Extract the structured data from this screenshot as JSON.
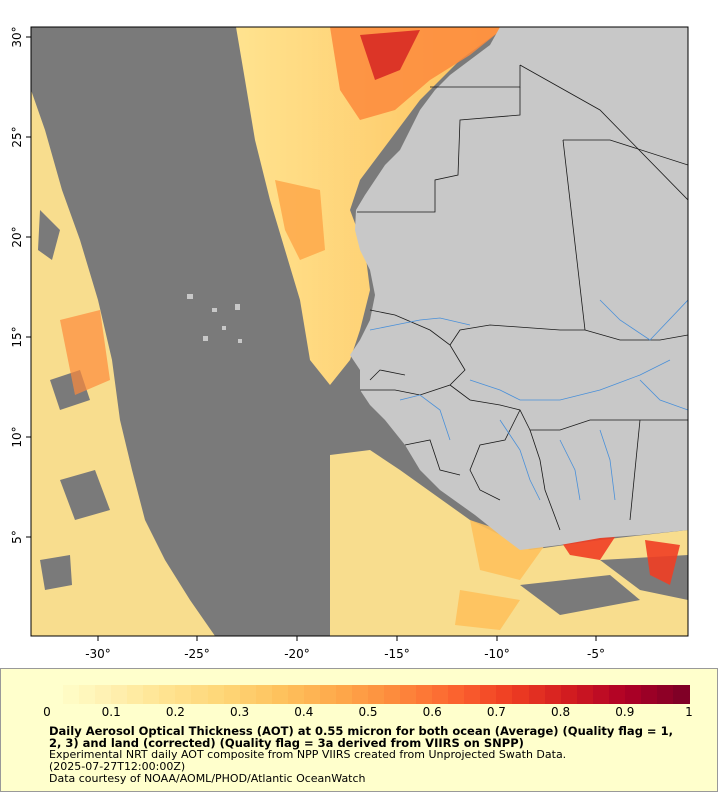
{
  "map": {
    "lon_range": [
      -33.5,
      -0.5
    ],
    "lat_range": [
      0.5,
      30.5
    ],
    "x_tick_labels": [
      "-30°",
      "-25°",
      "-20°",
      "-15°",
      "-10°",
      "-5°"
    ],
    "y_tick_labels": [
      "30°",
      "25°",
      "20°",
      "15°",
      "10°",
      "5°"
    ],
    "colors": {
      "no_data": "#7a7a7a",
      "land": "#c8c8c8",
      "border": "#1a1a1a",
      "river": "#4a90d9"
    }
  },
  "legend": {
    "scale_labels": [
      "0",
      "0.1",
      "0.2",
      "0.3",
      "0.4",
      "0.5",
      "0.6",
      "0.7",
      "0.8",
      "0.9",
      "1"
    ],
    "colors": [
      "#ffffcc",
      "#fff0b0",
      "#ffe38f",
      "#fed576",
      "#fec15c",
      "#fea84a",
      "#fd8a3c",
      "#fc6530",
      "#ef3e23",
      "#d31d20",
      "#b00026",
      "#800026"
    ],
    "title": "Daily Aerosol Optical Thickness (AOT) at 0.55 micron for both ocean (Average) (Quality flag = 1, 2, 3) and land (corrected) (Quality flag = 3a derived from VIIRS on SNPP)",
    "subtitle": "Experimental NRT daily AOT composite from NPP VIIRS created from Unprojected Swath Data.",
    "timestamp": "(2025-07-27T12:00:00Z)",
    "credit": "Data courtesy of NOAA/AOML/PHOD/Atlantic OceanWatch"
  }
}
